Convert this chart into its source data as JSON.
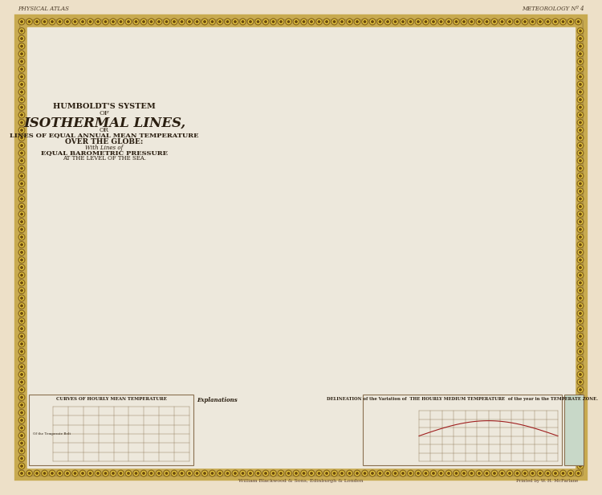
{
  "bg_outer": "#ede0c8",
  "bg_map": "#ede8dc",
  "border_band_color": "#c8aa50",
  "border_dark": "#5a4a2a",
  "grid_color": "#c0b090",
  "land_color": "#c8bb98",
  "land_edge": "#a09070",
  "polar_color": "#b8ccd8",
  "isotherm_color": "#b03020",
  "isotherm_lw": 0.9,
  "title_color": "#2a1e10",
  "text_color": "#3a2e1e",
  "ocean_label_color": "#5a4a38",
  "header_left": "PHYSICAL ATLAS",
  "header_right": "METEOROLOGY Nº 4",
  "title_line1": "HUMBOLDT'S SYSTEM",
  "title_line2": "OF",
  "title_line3": "ISOTHERMAL LINES,",
  "title_line4": "OR",
  "title_line5": "LINES OF EQUAL ANNUAL MEAN TEMPERATURE",
  "title_line6": "OVER THE GLOBE:",
  "footnote_center": "William Blackwood & Sons, Edinburgh & London",
  "footnote_right": "Printed by W. H. McFarlane",
  "figsize": [
    7.5,
    6.16
  ],
  "dpi": 100
}
